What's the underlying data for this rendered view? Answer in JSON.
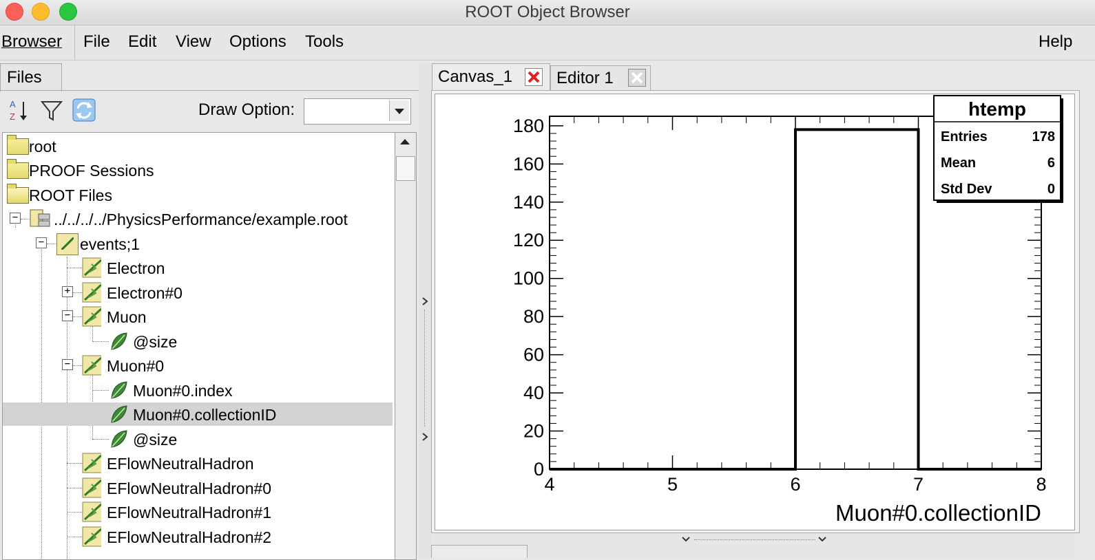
{
  "window": {
    "title": "ROOT Object Browser"
  },
  "menubar": {
    "browser": "Browser",
    "items": [
      "File",
      "Edit",
      "View",
      "Options",
      "Tools"
    ],
    "help": "Help"
  },
  "left_panel": {
    "tab": "Files",
    "draw_option_label": "Draw Option:",
    "draw_option_value": "",
    "tree": [
      {
        "label": "root",
        "icon": "folder-icon"
      },
      {
        "label": "PROOF Sessions",
        "icon": "folder-icon"
      },
      {
        "label": "ROOT Files",
        "icon": "open-folder-icon"
      },
      {
        "label": "../../../../PhysicsPerformance/example.root",
        "icon": "root-file-icon"
      },
      {
        "label": "events;1",
        "icon": "tree-icon"
      },
      {
        "label": "Electron",
        "icon": "branch-icon"
      },
      {
        "label": "Electron#0",
        "icon": "branch-icon"
      },
      {
        "label": "Muon",
        "icon": "branch-icon"
      },
      {
        "label": "@size",
        "icon": "leaf-icon"
      },
      {
        "label": "Muon#0",
        "icon": "branch-icon"
      },
      {
        "label": "Muon#0.index",
        "icon": "leaf-icon"
      },
      {
        "label": "Muon#0.collectionID",
        "icon": "leaf-icon"
      },
      {
        "label": "@size",
        "icon": "leaf-icon"
      },
      {
        "label": "EFlowNeutralHadron",
        "icon": "branch-icon"
      },
      {
        "label": "EFlowNeutralHadron#0",
        "icon": "branch-icon"
      },
      {
        "label": "EFlowNeutralHadron#1",
        "icon": "branch-icon"
      },
      {
        "label": "EFlowNeutralHadron#2",
        "icon": "branch-icon"
      }
    ]
  },
  "right_panel": {
    "tabs": [
      "Canvas_1",
      "Editor 1"
    ],
    "active_tab": "Canvas_1"
  },
  "chart_data": {
    "type": "bar",
    "title": "htemp",
    "xlabel": "Muon#0.collectionID",
    "ylabel": "",
    "xlim": [
      4,
      8
    ],
    "ylim": [
      0,
      185
    ],
    "x_ticks": [
      4,
      5,
      6,
      7,
      8
    ],
    "y_ticks": [
      0,
      20,
      40,
      60,
      80,
      100,
      120,
      140,
      160,
      180
    ],
    "bins": [
      {
        "low": 6,
        "high": 7,
        "value": 178
      }
    ],
    "stats": {
      "title": "htemp",
      "rows": [
        {
          "label": "Entries",
          "value": "178"
        },
        {
          "label": "Mean",
          "value": "6"
        },
        {
          "label": "Std Dev",
          "value": "0"
        }
      ]
    },
    "grid": false
  },
  "colors": {
    "close_active": "#e02020",
    "traffic_close": "#fc5f57",
    "traffic_min": "#fdbc2e",
    "traffic_max": "#28c840"
  }
}
